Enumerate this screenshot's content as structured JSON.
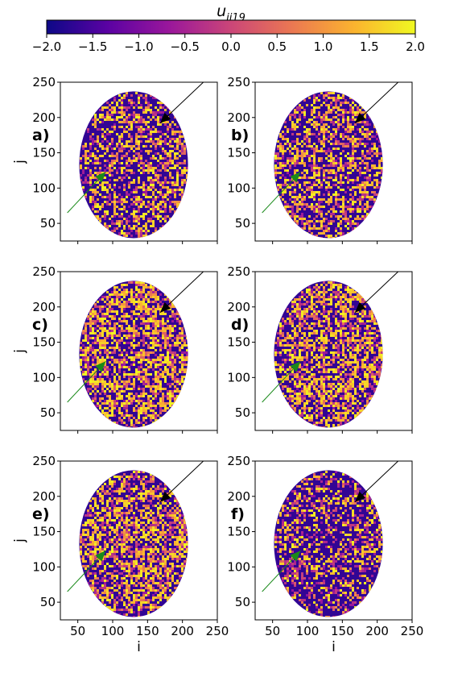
{
  "colorbar": {
    "label_main": "u",
    "label_sub": "ij19",
    "ticks": [
      "−2.0",
      "−1.5",
      "−1.0",
      "−0.5",
      "0.0",
      "0.5",
      "1.0",
      "1.5",
      "2.0"
    ],
    "vmin": -2.0,
    "vmax": 2.0,
    "colormap": "plasma",
    "colormap_stops": [
      "#0d0887",
      "#5b02a3",
      "#9a179b",
      "#cb4678",
      "#eb7852",
      "#fbb32f",
      "#f0f921"
    ]
  },
  "chart_data": {
    "type": "heatmap",
    "description_of_panels": "six brain-slice maps of u_ij19 (plasma colormap)",
    "xlabel": "i",
    "ylabel": "j",
    "xlim": [
      25,
      250
    ],
    "ylim": [
      25,
      250
    ],
    "xticks": [
      "50",
      "100",
      "150",
      "200",
      "250"
    ],
    "yticks": [
      "50",
      "100",
      "150",
      "200",
      "250"
    ],
    "panels": [
      {
        "label": "a)",
        "dominant": "purple",
        "bright_fraction": 0.32
      },
      {
        "label": "b)",
        "dominant": "purple",
        "bright_fraction": 0.38
      },
      {
        "label": "c)",
        "dominant": "mixed",
        "bright_fraction": 0.48
      },
      {
        "label": "d)",
        "dominant": "mixed",
        "bright_fraction": 0.46
      },
      {
        "label": "e)",
        "dominant": "mixed",
        "bright_fraction": 0.44
      },
      {
        "label": "f)",
        "dominant": "purple",
        "bright_fraction": 0.28
      }
    ],
    "arrows": [
      {
        "color": "#000000",
        "from": [
          230,
          250
        ],
        "to": [
          168,
          192
        ]
      },
      {
        "color": "#1a8a1a",
        "from": [
          35,
          65
        ],
        "to": [
          90,
          123
        ]
      }
    ],
    "ellipse": {
      "center": [
        130,
        133
      ],
      "semi_axis_i": 78,
      "semi_axis_j": 104
    }
  }
}
